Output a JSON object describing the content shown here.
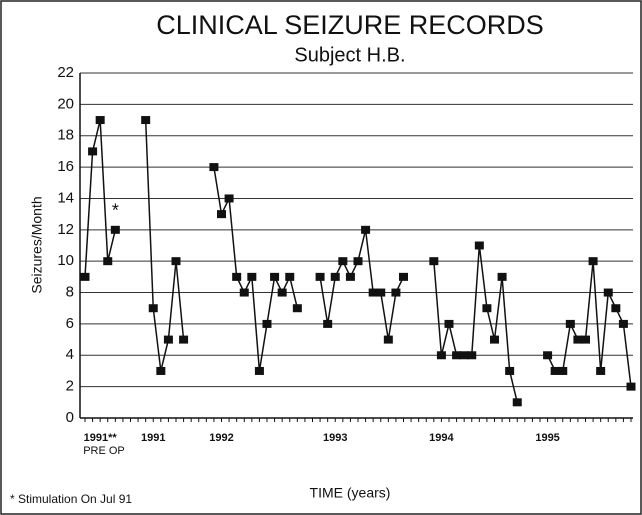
{
  "chart_data": {
    "type": "line",
    "title": "CLINICAL SEIZURE RECORDS",
    "subtitle": "Subject H.B.",
    "x_label": "TIME (years)",
    "y_label": "Seizures/Month",
    "annotations": [
      "*",
      "PRE OP",
      "* Stimulation On Jul 91"
    ],
    "categories": [
      null,
      null,
      "1991**",
      null,
      null,
      null,
      null,
      null,
      null,
      "1991",
      null,
      null,
      null,
      null,
      null,
      null,
      null,
      null,
      "1992",
      null,
      null,
      null,
      null,
      null,
      null,
      null,
      null,
      null,
      null,
      null,
      null,
      null,
      null,
      "1993",
      null,
      null,
      null,
      null,
      null,
      null,
      null,
      null,
      null,
      null,
      null,
      null,
      null,
      "1994",
      null,
      null,
      null,
      null,
      null,
      null,
      null,
      null,
      null,
      null,
      null,
      null,
      null,
      "1995",
      null,
      null,
      null,
      null,
      null,
      null,
      null,
      null,
      null,
      null,
      null
    ],
    "series": [
      {
        "name": "Seizures",
        "color": "#111111",
        "values": [
          9,
          17,
          19,
          10,
          12,
          null,
          null,
          null,
          19,
          7,
          3,
          5,
          10,
          5,
          null,
          null,
          null,
          16,
          13,
          14,
          9,
          8,
          9,
          3,
          6,
          9,
          8,
          9,
          7,
          null,
          null,
          9,
          6,
          9,
          10,
          9,
          10,
          12,
          8,
          8,
          5,
          8,
          9,
          null,
          null,
          null,
          10,
          4,
          6,
          4,
          4,
          4,
          11,
          7,
          5,
          9,
          3,
          1,
          null,
          null,
          null,
          4,
          3,
          3,
          6,
          5,
          5,
          10,
          3,
          8,
          7,
          6,
          2
        ]
      }
    ],
    "ylim": [
      0,
      22
    ],
    "yticks": [
      0,
      2,
      4,
      6,
      8,
      10,
      12,
      14,
      16,
      18,
      20,
      22
    ],
    "grid": true
  }
}
